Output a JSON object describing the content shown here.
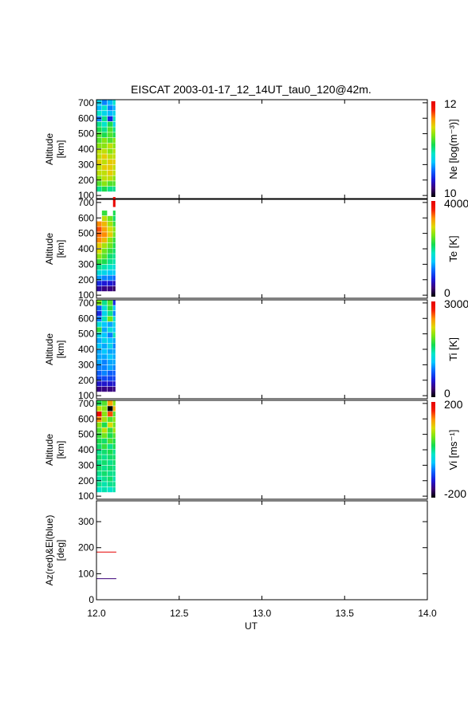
{
  "chart_data": {
    "title": "EISCAT 2003-01-17_12_14UT_tau0_120@42m.",
    "xlabel": "UT",
    "xlim": [
      12.0,
      14.0
    ],
    "xticks": [
      "12.0",
      "12.5",
      "13.0",
      "13.5",
      "14.0"
    ],
    "colorscale": [
      "#000000",
      "#3c0078",
      "#1a1adc",
      "#0a64ff",
      "#00c8ff",
      "#00e6c8",
      "#14dc50",
      "#78e614",
      "#dcdc00",
      "#ff9600",
      "#f51e00",
      "#e60000"
    ],
    "panels": [
      {
        "type": "heatmap",
        "ylabel": "Altitude",
        "yunit": "[km]",
        "ylim": [
          80,
          720
        ],
        "yticks": [
          "100",
          "200",
          "300",
          "400",
          "500",
          "600",
          "700"
        ],
        "cbar_label": "Ne [log(m⁻³)]",
        "cbar_ticks": [
          "12",
          "10"
        ],
        "cbar_range": [
          10,
          12
        ],
        "columns": [
          12.0,
          12.033,
          12.067,
          12.1
        ],
        "rows": [
          {
            "alt": 700,
            "values": [
              10.8,
              10.6,
              10.7,
              10.9
            ]
          },
          {
            "alt": 665,
            "values": [
              10.7,
              10.9,
              10.6,
              10.7
            ]
          },
          {
            "alt": 630,
            "values": [
              10.9,
              10.8,
              10.7,
              10.8
            ]
          },
          {
            "alt": 595,
            "values": [
              10.6,
              11.0,
              10.4,
              10.9
            ]
          },
          {
            "alt": 560,
            "values": [
              11.0,
              10.9,
              11.1,
              10.8
            ]
          },
          {
            "alt": 525,
            "values": [
              11.1,
              11.0,
              11.2,
              11.0
            ]
          },
          {
            "alt": 490,
            "values": [
              11.2,
              11.1,
              11.2,
              11.1
            ]
          },
          {
            "alt": 455,
            "values": [
              11.2,
              11.3,
              11.2,
              11.3
            ]
          },
          {
            "alt": 420,
            "values": [
              11.3,
              11.3,
              11.4,
              11.3
            ]
          },
          {
            "alt": 385,
            "values": [
              11.4,
              11.4,
              11.3,
              11.4
            ]
          },
          {
            "alt": 350,
            "values": [
              11.4,
              11.5,
              11.4,
              11.4
            ]
          },
          {
            "alt": 315,
            "values": [
              11.5,
              11.4,
              11.5,
              11.5
            ]
          },
          {
            "alt": 280,
            "values": [
              11.4,
              11.5,
              11.5,
              11.4
            ]
          },
          {
            "alt": 245,
            "values": [
              11.4,
              11.4,
              11.5,
              11.4
            ]
          },
          {
            "alt": 210,
            "values": [
              11.3,
              11.4,
              11.4,
              11.3
            ]
          },
          {
            "alt": 175,
            "values": [
              11.2,
              11.3,
              11.2,
              11.2
            ]
          },
          {
            "alt": 140,
            "values": [
              11.0,
              11.1,
              11.0,
              11.0
            ]
          }
        ]
      },
      {
        "type": "heatmap",
        "ylabel": "Altitude",
        "yunit": "[km]",
        "ylim": [
          80,
          720
        ],
        "yticks": [
          "100",
          "200",
          "300",
          "400",
          "500",
          "600",
          "700"
        ],
        "cbar_label": "Te [K]",
        "cbar_ticks": [
          "4000",
          "0"
        ],
        "cbar_range": [
          0,
          4000
        ],
        "columns": [
          12.0,
          12.033,
          12.067,
          12.1
        ],
        "rows": [
          {
            "alt": 700,
            "values": [
              null,
              null,
              null,
              3900
            ]
          },
          {
            "alt": 630,
            "values": [
              null,
              2300,
              null,
              2200
            ]
          },
          {
            "alt": 595,
            "values": [
              null,
              2800,
              2500,
              2100
            ]
          },
          {
            "alt": 560,
            "values": [
              3300,
              3100,
              2700,
              2300
            ]
          },
          {
            "alt": 525,
            "values": [
              3500,
              3200,
              2900,
              2600
            ]
          },
          {
            "alt": 490,
            "values": [
              3400,
              3300,
              3000,
              2500
            ]
          },
          {
            "alt": 455,
            "values": [
              3300,
              3100,
              2600,
              2300
            ]
          },
          {
            "alt": 420,
            "values": [
              3000,
              2700,
              2500,
              2200
            ]
          },
          {
            "alt": 385,
            "values": [
              2900,
              2500,
              2300,
              2100
            ]
          },
          {
            "alt": 350,
            "values": [
              2600,
              2400,
              2100,
              2000
            ]
          },
          {
            "alt": 315,
            "values": [
              2300,
              2200,
              2000,
              1900
            ]
          },
          {
            "alt": 280,
            "values": [
              2000,
              1900,
              1800,
              1700
            ]
          },
          {
            "alt": 245,
            "values": [
              1700,
              1600,
              1500,
              1500
            ]
          },
          {
            "alt": 210,
            "values": [
              1300,
              1200,
              1200,
              1100
            ]
          },
          {
            "alt": 175,
            "values": [
              800,
              700,
              700,
              600
            ]
          },
          {
            "alt": 140,
            "values": [
              500,
              400,
              400,
              300
            ]
          }
        ]
      },
      {
        "type": "heatmap",
        "ylabel": "Altitude",
        "yunit": "[km]",
        "ylim": [
          80,
          720
        ],
        "yticks": [
          "100",
          "200",
          "300",
          "400",
          "500",
          "600",
          "700"
        ],
        "cbar_label": "Ti [K]",
        "cbar_ticks": [
          "3000",
          "0"
        ],
        "cbar_range": [
          0,
          3000
        ],
        "columns": [
          12.0,
          12.033,
          12.067,
          12.1
        ],
        "rows": [
          {
            "alt": 700,
            "values": [
              1900,
              1500,
              1800,
              600
            ]
          },
          {
            "alt": 665,
            "values": [
              800,
              1300,
              1700,
              1100
            ]
          },
          {
            "alt": 630,
            "values": [
              600,
              1200,
              1500,
              900
            ]
          },
          {
            "alt": 595,
            "values": [
              900,
              1400,
              1900,
              1300
            ]
          },
          {
            "alt": 560,
            "values": [
              1300,
              1100,
              1000,
              1200
            ]
          },
          {
            "alt": 525,
            "values": [
              1700,
              1000,
              1300,
              1100
            ]
          },
          {
            "alt": 490,
            "values": [
              1200,
              1100,
              900,
              1400
            ]
          },
          {
            "alt": 455,
            "values": [
              1000,
              1200,
              1100,
              1000
            ]
          },
          {
            "alt": 420,
            "values": [
              1100,
              1000,
              1200,
              900
            ]
          },
          {
            "alt": 385,
            "values": [
              1000,
              1100,
              1000,
              1000
            ]
          },
          {
            "alt": 350,
            "values": [
              1000,
              1000,
              1100,
              1000
            ]
          },
          {
            "alt": 315,
            "values": [
              1000,
              900,
              1000,
              1000
            ]
          },
          {
            "alt": 280,
            "values": [
              900,
              900,
              1000,
              900
            ]
          },
          {
            "alt": 245,
            "values": [
              800,
              900,
              800,
              800
            ]
          },
          {
            "alt": 210,
            "values": [
              700,
              700,
              700,
              700
            ]
          },
          {
            "alt": 175,
            "values": [
              500,
              500,
              500,
              500
            ]
          },
          {
            "alt": 140,
            "values": [
              300,
              300,
              300,
              300
            ]
          }
        ]
      },
      {
        "type": "heatmap",
        "ylabel": "Altitude",
        "yunit": "[km]",
        "ylim": [
          80,
          720
        ],
        "yticks": [
          "100",
          "200",
          "300",
          "400",
          "500",
          "600",
          "700"
        ],
        "cbar_label": "Vi [ms⁻¹]",
        "cbar_ticks": [
          "200",
          "-200"
        ],
        "cbar_range": [
          -200,
          200
        ],
        "columns": [
          12.0,
          12.033,
          12.067,
          12.1
        ],
        "rows": [
          {
            "alt": 700,
            "values": [
              20,
              40,
              120,
              60
            ]
          },
          {
            "alt": 665,
            "values": [
              80,
              60,
              -210,
              110
            ]
          },
          {
            "alt": 630,
            "values": [
              190,
              60,
              150,
              40
            ]
          },
          {
            "alt": 595,
            "values": [
              130,
              70,
              40,
              60
            ]
          },
          {
            "alt": 560,
            "values": [
              60,
              20,
              90,
              50
            ]
          },
          {
            "alt": 525,
            "values": [
              40,
              80,
              30,
              70
            ]
          },
          {
            "alt": 490,
            "values": [
              30,
              50,
              20,
              40
            ]
          },
          {
            "alt": 455,
            "values": [
              20,
              10,
              40,
              20
            ]
          },
          {
            "alt": 420,
            "values": [
              10,
              30,
              0,
              20
            ]
          },
          {
            "alt": 385,
            "values": [
              0,
              10,
              20,
              0
            ]
          },
          {
            "alt": 350,
            "values": [
              10,
              0,
              10,
              10
            ]
          },
          {
            "alt": 315,
            "values": [
              0,
              10,
              0,
              10
            ]
          },
          {
            "alt": 280,
            "values": [
              10,
              0,
              10,
              0
            ]
          },
          {
            "alt": 245,
            "values": [
              0,
              10,
              0,
              0
            ]
          },
          {
            "alt": 210,
            "values": [
              -10,
              0,
              10,
              -10
            ]
          },
          {
            "alt": 175,
            "values": [
              0,
              -10,
              0,
              0
            ]
          },
          {
            "alt": 140,
            "values": [
              -20,
              -10,
              -20,
              -10
            ]
          }
        ]
      },
      {
        "type": "line",
        "ylabel": "Az(red)&El(blue)",
        "yunit": "[deg]",
        "ylim": [
          0,
          380
        ],
        "yticks": [
          "0",
          "100",
          "200",
          "300"
        ],
        "series": [
          {
            "color": "#e60000",
            "x": [
              12.0,
              12.12
            ],
            "y": [
              183,
              183
            ]
          },
          {
            "color": "#3c0078",
            "x": [
              12.0,
              12.12
            ],
            "y": [
              81,
              81
            ]
          }
        ]
      }
    ]
  }
}
